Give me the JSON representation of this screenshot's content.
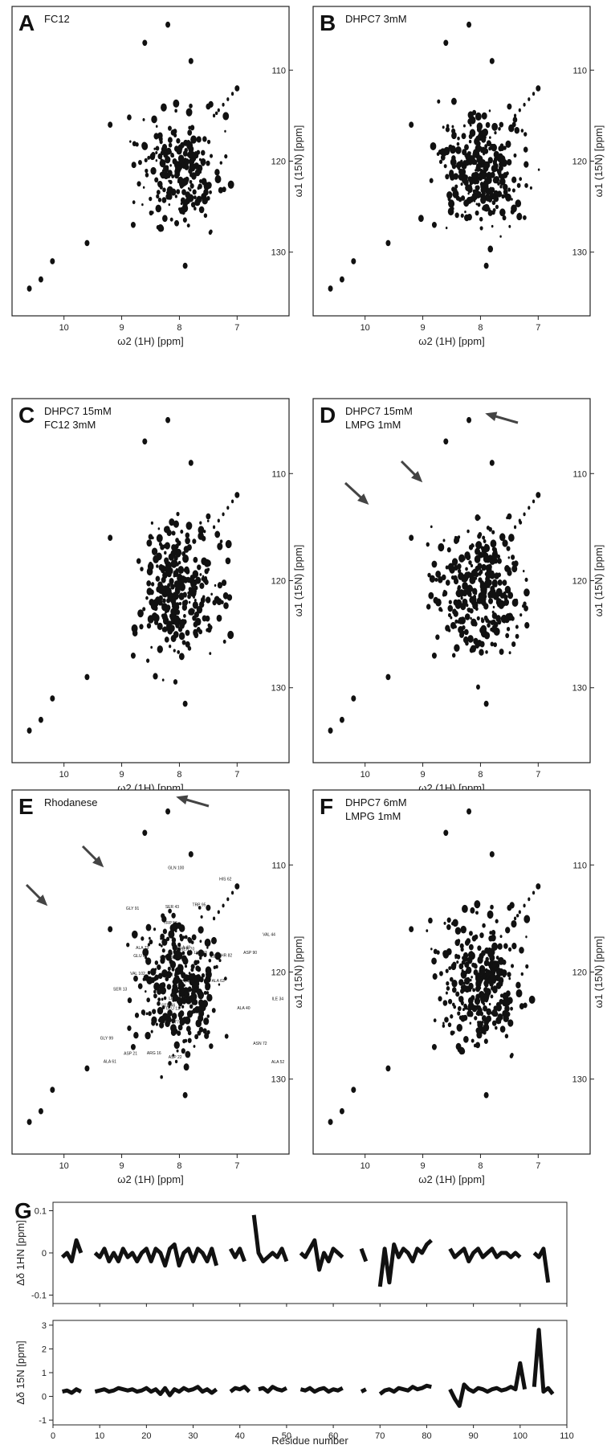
{
  "spectra_axes": {
    "x_label": "ω2 (1H) [ppm]",
    "y_label": "ω1 (15N) [ppm]",
    "x_ticks": [
      "10",
      "9",
      "8",
      "7"
    ],
    "y_ticks": [
      "110",
      "120",
      "130"
    ]
  },
  "panels": [
    {
      "letter": "A",
      "lines": [
        "FC12"
      ]
    },
    {
      "letter": "B",
      "lines": [
        "DHPC7 3mM"
      ]
    },
    {
      "letter": "C",
      "lines": [
        "DHPC7 15mM",
        "FC12 3mM"
      ]
    },
    {
      "letter": "D",
      "lines": [
        "DHPC7 15mM",
        "LMPG 1mM"
      ]
    },
    {
      "letter": "E",
      "lines": [
        "Rhodanese"
      ]
    },
    {
      "letter": "F",
      "lines": [
        "DHPC7 6mM",
        "LMPG 1mM"
      ]
    }
  ],
  "rhodanese_labels": [
    "GLY 91",
    "GLY 99",
    "GLY 77",
    "VAL 102",
    "SER 43",
    "SER 46",
    "GLY 94",
    "ASP 21",
    "SER 70",
    "GLY 86",
    "LYS 93",
    "ASN 72",
    "ARG 16",
    "THR 82",
    "HIS 62",
    "ALA 48",
    "ASP 90",
    "SER 13",
    "ILE 34",
    "ILE 24",
    "TRP 95",
    "GLU 89",
    "ASP 22",
    "ALA 40",
    "GLN 100",
    "TRP 56",
    "LEU 100",
    "VAL 44",
    "ALA 61",
    "ALA 73",
    "ARG 31",
    "GLU 12",
    "ALA 52",
    "ALA 63"
  ],
  "chart_data": {
    "type": "line",
    "panel": "G",
    "xlabel": "Residue number",
    "xlim": [
      0,
      110
    ],
    "x_ticks": [
      0,
      10,
      20,
      30,
      40,
      50,
      60,
      70,
      80,
      90,
      100,
      110
    ],
    "subplots": [
      {
        "ylabel": "Δδ 1HN [ppm]",
        "ylim": [
          -0.12,
          0.12
        ],
        "y_ticks": [
          "-0.1",
          "0",
          "0.1"
        ],
        "y_tick_values": [
          -0.1,
          0,
          0.1
        ],
        "segments": [
          [
            [
              2,
              -0.01
            ],
            [
              3,
              0.0
            ],
            [
              4,
              -0.02
            ],
            [
              5,
              0.03
            ],
            [
              6,
              0.0
            ]
          ],
          [
            [
              9,
              0.0
            ],
            [
              10,
              -0.01
            ],
            [
              11,
              0.01
            ],
            [
              12,
              -0.02
            ],
            [
              13,
              0.0
            ],
            [
              14,
              -0.02
            ],
            [
              15,
              0.01
            ],
            [
              16,
              -0.01
            ],
            [
              17,
              0.0
            ],
            [
              18,
              -0.02
            ],
            [
              19,
              0.0
            ],
            [
              20,
              0.01
            ],
            [
              21,
              -0.02
            ],
            [
              22,
              0.01
            ],
            [
              23,
              0.0
            ],
            [
              24,
              -0.03
            ],
            [
              25,
              0.01
            ],
            [
              26,
              0.02
            ],
            [
              27,
              -0.03
            ],
            [
              28,
              0.0
            ],
            [
              29,
              0.01
            ],
            [
              30,
              -0.02
            ],
            [
              31,
              0.01
            ],
            [
              32,
              0.0
            ],
            [
              33,
              -0.02
            ],
            [
              34,
              0.01
            ],
            [
              35,
              -0.03
            ]
          ],
          [
            [
              38,
              0.01
            ],
            [
              39,
              -0.01
            ],
            [
              40,
              0.01
            ],
            [
              41,
              -0.02
            ]
          ],
          [
            [
              43,
              0.09
            ],
            [
              44,
              0.0
            ],
            [
              45,
              -0.02
            ],
            [
              46,
              -0.01
            ],
            [
              47,
              0.0
            ],
            [
              48,
              -0.01
            ],
            [
              49,
              0.01
            ],
            [
              50,
              -0.02
            ]
          ],
          [
            [
              53,
              0.0
            ],
            [
              54,
              -0.01
            ],
            [
              55,
              0.01
            ],
            [
              56,
              0.03
            ],
            [
              57,
              -0.04
            ],
            [
              58,
              0.0
            ],
            [
              59,
              -0.02
            ],
            [
              60,
              0.01
            ],
            [
              61,
              0.0
            ],
            [
              62,
              -0.01
            ]
          ],
          [
            [
              66,
              0.01
            ],
            [
              67,
              -0.02
            ]
          ],
          [
            [
              70,
              -0.08
            ],
            [
              71,
              0.01
            ],
            [
              72,
              -0.07
            ],
            [
              73,
              0.02
            ],
            [
              74,
              -0.01
            ],
            [
              75,
              0.01
            ],
            [
              76,
              0.0
            ],
            [
              77,
              -0.02
            ],
            [
              78,
              0.01
            ],
            [
              79,
              0.0
            ],
            [
              80,
              0.02
            ],
            [
              81,
              0.03
            ]
          ],
          [
            [
              85,
              0.01
            ],
            [
              86,
              -0.01
            ],
            [
              87,
              0.0
            ],
            [
              88,
              0.01
            ],
            [
              89,
              -0.02
            ],
            [
              90,
              0.0
            ],
            [
              91,
              0.01
            ],
            [
              92,
              -0.01
            ],
            [
              93,
              0.0
            ],
            [
              94,
              0.01
            ],
            [
              95,
              -0.01
            ],
            [
              96,
              0.0
            ],
            [
              97,
              0.0
            ],
            [
              98,
              -0.01
            ],
            [
              99,
              0.0
            ],
            [
              100,
              -0.01
            ]
          ],
          [
            [
              103,
              0.0
            ],
            [
              104,
              -0.01
            ],
            [
              105,
              0.01
            ],
            [
              106,
              -0.07
            ]
          ]
        ]
      },
      {
        "ylabel": "Δδ 15N [ppm]",
        "ylim": [
          -1.2,
          3.2
        ],
        "y_ticks": [
          "-1",
          "0",
          "1",
          "2",
          "3"
        ],
        "y_tick_values": [
          -1,
          0,
          1,
          2,
          3
        ],
        "segments": [
          [
            [
              2,
              0.2
            ],
            [
              3,
              0.25
            ],
            [
              4,
              0.15
            ],
            [
              5,
              0.3
            ],
            [
              6,
              0.2
            ]
          ],
          [
            [
              9,
              0.2
            ],
            [
              10,
              0.25
            ],
            [
              11,
              0.3
            ],
            [
              12,
              0.2
            ],
            [
              13,
              0.25
            ],
            [
              14,
              0.35
            ],
            [
              15,
              0.3
            ],
            [
              16,
              0.25
            ],
            [
              17,
              0.3
            ],
            [
              18,
              0.2
            ],
            [
              19,
              0.25
            ],
            [
              20,
              0.35
            ],
            [
              21,
              0.2
            ],
            [
              22,
              0.3
            ],
            [
              23,
              0.1
            ],
            [
              24,
              0.35
            ],
            [
              25,
              0.05
            ],
            [
              26,
              0.3
            ],
            [
              27,
              0.2
            ],
            [
              28,
              0.35
            ],
            [
              29,
              0.25
            ],
            [
              30,
              0.3
            ],
            [
              31,
              0.4
            ],
            [
              32,
              0.2
            ],
            [
              33,
              0.3
            ],
            [
              34,
              0.15
            ],
            [
              35,
              0.3
            ]
          ],
          [
            [
              38,
              0.2
            ],
            [
              39,
              0.35
            ],
            [
              40,
              0.3
            ],
            [
              41,
              0.4
            ],
            [
              42,
              0.2
            ]
          ],
          [
            [
              44,
              0.3
            ],
            [
              45,
              0.35
            ],
            [
              46,
              0.2
            ],
            [
              47,
              0.4
            ],
            [
              48,
              0.3
            ],
            [
              49,
              0.25
            ],
            [
              50,
              0.35
            ]
          ],
          [
            [
              53,
              0.3
            ],
            [
              54,
              0.25
            ],
            [
              55,
              0.35
            ],
            [
              56,
              0.2
            ],
            [
              57,
              0.3
            ],
            [
              58,
              0.35
            ],
            [
              59,
              0.2
            ],
            [
              60,
              0.3
            ],
            [
              61,
              0.25
            ],
            [
              62,
              0.35
            ]
          ],
          [
            [
              66,
              0.2
            ],
            [
              67,
              0.3
            ]
          ],
          [
            [
              70,
              0.1
            ],
            [
              71,
              0.25
            ],
            [
              72,
              0.3
            ],
            [
              73,
              0.2
            ],
            [
              74,
              0.35
            ],
            [
              75,
              0.3
            ],
            [
              76,
              0.25
            ],
            [
              77,
              0.4
            ],
            [
              78,
              0.3
            ],
            [
              79,
              0.35
            ],
            [
              80,
              0.45
            ],
            [
              81,
              0.4
            ]
          ],
          [
            [
              85,
              0.3
            ],
            [
              86,
              -0.1
            ],
            [
              87,
              -0.4
            ],
            [
              88,
              0.5
            ],
            [
              89,
              0.3
            ],
            [
              90,
              0.2
            ],
            [
              91,
              0.35
            ],
            [
              92,
              0.3
            ],
            [
              93,
              0.2
            ],
            [
              94,
              0.3
            ],
            [
              95,
              0.35
            ],
            [
              96,
              0.25
            ],
            [
              97,
              0.3
            ],
            [
              98,
              0.4
            ],
            [
              99,
              0.3
            ],
            [
              100,
              1.4
            ],
            [
              101,
              0.3
            ]
          ],
          [
            [
              103,
              0.4
            ],
            [
              104,
              2.8
            ],
            [
              105,
              0.2
            ],
            [
              106,
              0.35
            ],
            [
              107,
              0.1
            ]
          ]
        ]
      }
    ]
  }
}
